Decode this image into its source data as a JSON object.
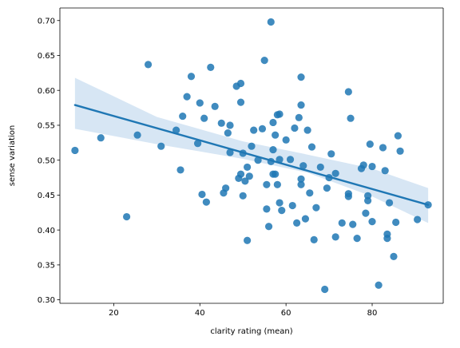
{
  "chart_data": {
    "type": "scatter",
    "title": "",
    "xlabel": "clarity rating (mean)",
    "ylabel": "sense variation",
    "xlim": [
      7.5,
      96.5
    ],
    "ylim": [
      0.295,
      0.718
    ],
    "xticks": [
      20,
      40,
      60,
      80
    ],
    "yticks": [
      0.3,
      0.35,
      0.4,
      0.45,
      0.5,
      0.55,
      0.6,
      0.65,
      0.7
    ],
    "grid": false,
    "point_color": "#1f77b4",
    "line_color": "#1f77b4",
    "band_color": "#c6dbef",
    "regression": {
      "x_start": 11,
      "y_start": 0.579,
      "x_end": 93,
      "y_end": 0.436
    },
    "confidence_band": {
      "x": [
        11,
        30,
        50,
        65,
        80,
        93
      ],
      "upper": [
        0.618,
        0.562,
        0.527,
        0.508,
        0.488,
        0.46
      ],
      "lower": [
        0.545,
        0.523,
        0.502,
        0.482,
        0.448,
        0.41
      ]
    },
    "points": [
      {
        "x": 11,
        "y": 0.514
      },
      {
        "x": 17,
        "y": 0.532
      },
      {
        "x": 23,
        "y": 0.419
      },
      {
        "x": 25.5,
        "y": 0.536
      },
      {
        "x": 28,
        "y": 0.637
      },
      {
        "x": 31,
        "y": 0.52
      },
      {
        "x": 34.5,
        "y": 0.543
      },
      {
        "x": 35.5,
        "y": 0.486
      },
      {
        "x": 36,
        "y": 0.563
      },
      {
        "x": 37,
        "y": 0.591
      },
      {
        "x": 38,
        "y": 0.62
      },
      {
        "x": 39.5,
        "y": 0.524
      },
      {
        "x": 40,
        "y": 0.582
      },
      {
        "x": 40.5,
        "y": 0.451
      },
      {
        "x": 41,
        "y": 0.56
      },
      {
        "x": 41.5,
        "y": 0.44
      },
      {
        "x": 42.5,
        "y": 0.633
      },
      {
        "x": 43.5,
        "y": 0.577
      },
      {
        "x": 45,
        "y": 0.553
      },
      {
        "x": 45.5,
        "y": 0.453
      },
      {
        "x": 46,
        "y": 0.46
      },
      {
        "x": 46.5,
        "y": 0.539
      },
      {
        "x": 47,
        "y": 0.511
      },
      {
        "x": 47,
        "y": 0.55
      },
      {
        "x": 48.5,
        "y": 0.606
      },
      {
        "x": 49,
        "y": 0.474
      },
      {
        "x": 49.5,
        "y": 0.583
      },
      {
        "x": 49.5,
        "y": 0.48
      },
      {
        "x": 49.5,
        "y": 0.61
      },
      {
        "x": 50,
        "y": 0.449
      },
      {
        "x": 50,
        "y": 0.51
      },
      {
        "x": 50.5,
        "y": 0.47
      },
      {
        "x": 51,
        "y": 0.385
      },
      {
        "x": 51,
        "y": 0.49
      },
      {
        "x": 51.5,
        "y": 0.477
      },
      {
        "x": 52,
        "y": 0.52
      },
      {
        "x": 52.5,
        "y": 0.543
      },
      {
        "x": 53.5,
        "y": 0.5
      },
      {
        "x": 54.5,
        "y": 0.545
      },
      {
        "x": 55,
        "y": 0.643
      },
      {
        "x": 55.5,
        "y": 0.465
      },
      {
        "x": 55.5,
        "y": 0.43
      },
      {
        "x": 56,
        "y": 0.405
      },
      {
        "x": 56.5,
        "y": 0.498
      },
      {
        "x": 56.5,
        "y": 0.698
      },
      {
        "x": 57,
        "y": 0.554
      },
      {
        "x": 57,
        "y": 0.515
      },
      {
        "x": 57,
        "y": 0.48
      },
      {
        "x": 57.5,
        "y": 0.48
      },
      {
        "x": 57.5,
        "y": 0.536
      },
      {
        "x": 58,
        "y": 0.565
      },
      {
        "x": 58,
        "y": 0.465
      },
      {
        "x": 58.5,
        "y": 0.439
      },
      {
        "x": 58.5,
        "y": 0.566
      },
      {
        "x": 58.5,
        "y": 0.501
      },
      {
        "x": 59,
        "y": 0.428
      },
      {
        "x": 60,
        "y": 0.529
      },
      {
        "x": 61,
        "y": 0.501
      },
      {
        "x": 61.5,
        "y": 0.435
      },
      {
        "x": 62,
        "y": 0.546
      },
      {
        "x": 62.5,
        "y": 0.41
      },
      {
        "x": 63,
        "y": 0.561
      },
      {
        "x": 63.5,
        "y": 0.465
      },
      {
        "x": 63.5,
        "y": 0.473
      },
      {
        "x": 63.5,
        "y": 0.579
      },
      {
        "x": 63.5,
        "y": 0.619
      },
      {
        "x": 64,
        "y": 0.492
      },
      {
        "x": 64.5,
        "y": 0.416
      },
      {
        "x": 65,
        "y": 0.543
      },
      {
        "x": 65.5,
        "y": 0.453
      },
      {
        "x": 66,
        "y": 0.519
      },
      {
        "x": 66.5,
        "y": 0.386
      },
      {
        "x": 67,
        "y": 0.432
      },
      {
        "x": 68,
        "y": 0.49
      },
      {
        "x": 69,
        "y": 0.315
      },
      {
        "x": 69.5,
        "y": 0.46
      },
      {
        "x": 70,
        "y": 0.475
      },
      {
        "x": 70.5,
        "y": 0.509
      },
      {
        "x": 71.5,
        "y": 0.481
      },
      {
        "x": 71.5,
        "y": 0.39
      },
      {
        "x": 73,
        "y": 0.41
      },
      {
        "x": 74.5,
        "y": 0.448
      },
      {
        "x": 74.5,
        "y": 0.452
      },
      {
        "x": 74.5,
        "y": 0.598
      },
      {
        "x": 75,
        "y": 0.56
      },
      {
        "x": 75.5,
        "y": 0.408
      },
      {
        "x": 76.5,
        "y": 0.388
      },
      {
        "x": 77.5,
        "y": 0.488
      },
      {
        "x": 78,
        "y": 0.493
      },
      {
        "x": 78.5,
        "y": 0.424
      },
      {
        "x": 79,
        "y": 0.449
      },
      {
        "x": 79,
        "y": 0.442
      },
      {
        "x": 79.5,
        "y": 0.523
      },
      {
        "x": 80,
        "y": 0.412
      },
      {
        "x": 80,
        "y": 0.491
      },
      {
        "x": 81.5,
        "y": 0.321
      },
      {
        "x": 82.5,
        "y": 0.518
      },
      {
        "x": 83,
        "y": 0.485
      },
      {
        "x": 83.5,
        "y": 0.388
      },
      {
        "x": 83.5,
        "y": 0.394
      },
      {
        "x": 84,
        "y": 0.439
      },
      {
        "x": 85,
        "y": 0.362
      },
      {
        "x": 85.5,
        "y": 0.411
      },
      {
        "x": 86,
        "y": 0.535
      },
      {
        "x": 86.5,
        "y": 0.513
      },
      {
        "x": 90.5,
        "y": 0.415
      },
      {
        "x": 93,
        "y": 0.436
      }
    ]
  }
}
